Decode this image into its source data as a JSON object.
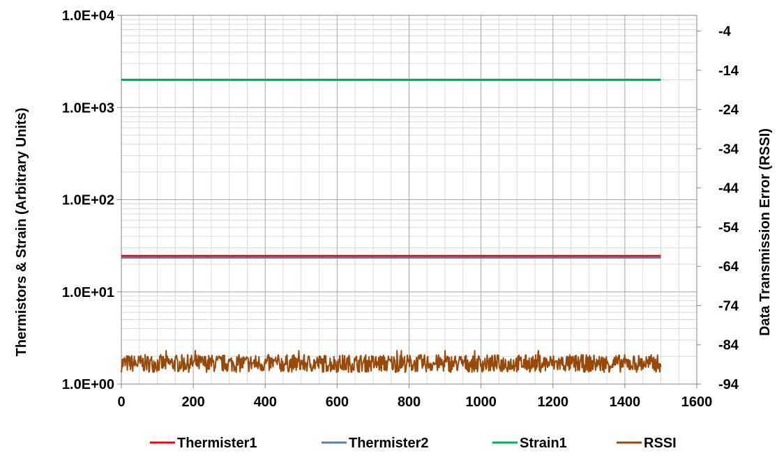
{
  "chart_data": {
    "type": "line",
    "x": {
      "range": [
        0,
        1600
      ],
      "ticks": [
        0,
        200,
        400,
        600,
        800,
        1000,
        1200,
        1400,
        1600
      ],
      "tick_labels": [
        "0",
        "200",
        "400",
        "600",
        "800",
        "1000",
        "1200",
        "1400",
        "1600"
      ],
      "minor_step": 50,
      "label": ""
    },
    "y_left": {
      "label": "Thermistors & Strain (Arbitrary Units)",
      "scale": "log",
      "range": [
        1,
        10000
      ],
      "ticks": [
        1,
        10,
        100,
        1000,
        10000
      ],
      "tick_labels": [
        "1.0E+00",
        "1.0E+01",
        "1.0E+02",
        "1.0E+03",
        "1.0E+04"
      ]
    },
    "y_right": {
      "label": "Data Transmission Error (RSSI)",
      "scale": "linear",
      "range": [
        -94,
        0
      ],
      "ticks": [
        -94,
        -84,
        -74,
        -64,
        -54,
        -44,
        -34,
        -24,
        -14,
        -4
      ],
      "tick_labels": [
        "-94",
        "-84",
        "-74",
        "-64",
        "-54",
        "-44",
        "-34",
        "-24",
        "-14",
        "-4"
      ]
    },
    "grid": true,
    "legend_position": "bottom",
    "series": [
      {
        "name": "Thermister1",
        "axis": "left",
        "color": "#ff0000",
        "x": [
          0,
          1500
        ],
        "y": [
          24.5,
          24.5
        ]
      },
      {
        "name": "Thermister2",
        "axis": "left",
        "color": "#4f81bd",
        "x": [
          0,
          1500
        ],
        "y": [
          23.5,
          23.5
        ]
      },
      {
        "name": "Strain1",
        "axis": "left",
        "color": "#00b050",
        "x": [
          0,
          1500
        ],
        "y": [
          2000,
          2000
        ]
      },
      {
        "name": "RSSI",
        "axis": "right",
        "color": "#984807",
        "x_range": [
          0,
          1500
        ],
        "mean": -88.5,
        "band": [
          -91,
          -86.5
        ],
        "peak": -85.5
      }
    ]
  }
}
